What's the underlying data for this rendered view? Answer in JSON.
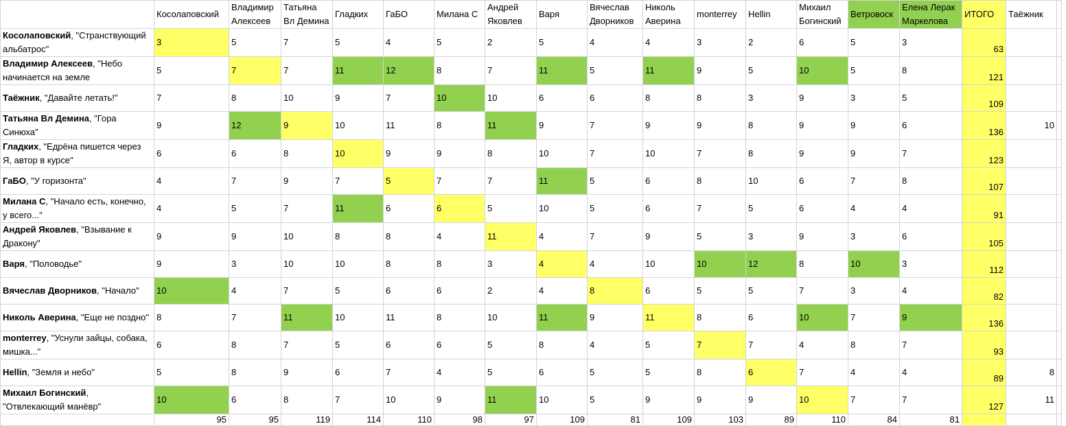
{
  "columns": [
    "Косолаповский",
    "Владимир Алексеев",
    "Татьяна Вл Демина",
    "Гладких",
    "ГаБО",
    "Милана С",
    "Андрей Яковлев",
    "Варя",
    "Вячеслав Дворников",
    "Николь Аверина",
    "monterrey",
    "Hellin",
    "Михаил Богинский",
    "Ветровоск",
    "Елена Лерак Маркелова",
    "ИТОГО",
    "Таёжник"
  ],
  "header_highlight": {
    "13": "g",
    "14": "g",
    "15": "y"
  },
  "rows": [
    {
      "author": "Косолаповский",
      "title": ", \"Странствующий альбатрос\"",
      "values": [
        "3",
        "5",
        "7",
        "5",
        "4",
        "5",
        "2",
        "5",
        "4",
        "4",
        "3",
        "2",
        "6",
        "5",
        "3"
      ],
      "hl": {
        "0": "y"
      },
      "total": "63",
      "extra": ""
    },
    {
      "author": "Владимир Алексеев",
      "title": ", \"Небо начинается на земле",
      "values": [
        "5",
        "7",
        "7",
        "11",
        "12",
        "8",
        "7",
        "11",
        "5",
        "11",
        "9",
        "5",
        "10",
        "5",
        "8"
      ],
      "hl": {
        "1": "y",
        "3": "g",
        "4": "g",
        "7": "g",
        "9": "g",
        "12": "g"
      },
      "total": "121",
      "extra": ""
    },
    {
      "author": "Таёжник",
      "title": ", \"Давайте летать!\"",
      "values": [
        "7",
        "8",
        "10",
        "9",
        "7",
        "10",
        "10",
        "6",
        "6",
        "8",
        "8",
        "3",
        "9",
        "3",
        "5"
      ],
      "hl": {
        "5": "g"
      },
      "total": "109",
      "extra": ""
    },
    {
      "author": "Татьяна Вл Демина",
      "title": ", \"Гора Синюха\"",
      "values": [
        "9",
        "12",
        "9",
        "10",
        "11",
        "8",
        "11",
        "9",
        "7",
        "9",
        "9",
        "8",
        "9",
        "9",
        "6"
      ],
      "hl": {
        "1": "g",
        "2": "y",
        "6": "g"
      },
      "total": "136",
      "extra": "10"
    },
    {
      "author": "Гладких",
      "title": ", \"Едрёна пишется через Я, автор в курсе\"",
      "values": [
        "6",
        "6",
        "8",
        "10",
        "9",
        "9",
        "8",
        "10",
        "7",
        "10",
        "7",
        "8",
        "9",
        "9",
        "7"
      ],
      "hl": {
        "3": "y"
      },
      "total": "123",
      "extra": ""
    },
    {
      "author": "ГаБО",
      "title": ", \"У горизонта\"",
      "values": [
        "4",
        "7",
        "9",
        "7",
        "5",
        "7",
        "7",
        "11",
        "5",
        "6",
        "8",
        "10",
        "6",
        "7",
        "8"
      ],
      "hl": {
        "4": "y",
        "7": "g"
      },
      "total": "107",
      "extra": ""
    },
    {
      "author": "Милана С",
      "title": ", \"Начало есть, конечно, у всего...\"",
      "values": [
        "4",
        "5",
        "7",
        "11",
        "6",
        "6",
        "5",
        "10",
        "5",
        "6",
        "7",
        "5",
        "6",
        "4",
        "4"
      ],
      "hl": {
        "3": "g",
        "5": "y"
      },
      "total": "91",
      "extra": ""
    },
    {
      "author": "Андрей Яковлев",
      "title": ", \"Взывание к Дракону\"",
      "values": [
        "9",
        "9",
        "10",
        "8",
        "8",
        "4",
        "11",
        "4",
        "7",
        "9",
        "5",
        "3",
        "9",
        "3",
        "6"
      ],
      "hl": {
        "6": "y"
      },
      "total": "105",
      "extra": ""
    },
    {
      "author": "Варя",
      "title": ", \"Половодье\"",
      "values": [
        "9",
        "3",
        "10",
        "10",
        "8",
        "8",
        "3",
        "4",
        "4",
        "10",
        "10",
        "12",
        "8",
        "10",
        "3"
      ],
      "hl": {
        "7": "y",
        "10": "g",
        "11": "g",
        "13": "g"
      },
      "total": "112",
      "extra": ""
    },
    {
      "author": "Вячеслав Дворников",
      "title": ", \"Начало\"",
      "values": [
        "10",
        "4",
        "7",
        "5",
        "6",
        "6",
        "2",
        "4",
        "8",
        "6",
        "5",
        "5",
        "7",
        "3",
        "4"
      ],
      "hl": {
        "0": "g",
        "8": "y"
      },
      "total": "82",
      "extra": ""
    },
    {
      "author": "Николь Аверина",
      "title": ", \"Еще не поздно\"",
      "values": [
        "8",
        "7",
        "11",
        "10",
        "11",
        "8",
        "10",
        "11",
        "9",
        "11",
        "8",
        "6",
        "10",
        "7",
        "9"
      ],
      "hl": {
        "2": "g",
        "7": "g",
        "9": "y",
        "12": "g",
        "14": "g"
      },
      "total": "136",
      "extra": ""
    },
    {
      "author": "monterrey",
      "title": ", \"Уснули зайцы, собака, мишка...\"",
      "values": [
        "6",
        "8",
        "7",
        "5",
        "6",
        "6",
        "5",
        "8",
        "4",
        "5",
        "7",
        "7",
        "4",
        "8",
        "7"
      ],
      "hl": {
        "10": "y"
      },
      "total": "93",
      "extra": ""
    },
    {
      "author": "Hellin",
      "title": ", \"Земля и небо\"",
      "values": [
        "5",
        "8",
        "9",
        "6",
        "7",
        "4",
        "5",
        "6",
        "5",
        "5",
        "8",
        "6",
        "7",
        "4",
        "4"
      ],
      "hl": {
        "11": "y"
      },
      "total": "89",
      "extra": "8"
    },
    {
      "author": "Михаил Богинский",
      "title": ", \"Отвлекающий манёвр\"",
      "values": [
        "10",
        "6",
        "8",
        "7",
        "10",
        "9",
        "11",
        "10",
        "5",
        "9",
        "9",
        "9",
        "10",
        "7",
        "7"
      ],
      "hl": {
        "0": "g",
        "6": "g",
        "12": "y"
      },
      "total": "127",
      "extra": "11"
    }
  ],
  "column_sums": [
    "95",
    "95",
    "119",
    "114",
    "110",
    "98",
    "97",
    "109",
    "81",
    "109",
    "103",
    "89",
    "110",
    "84",
    "81"
  ]
}
